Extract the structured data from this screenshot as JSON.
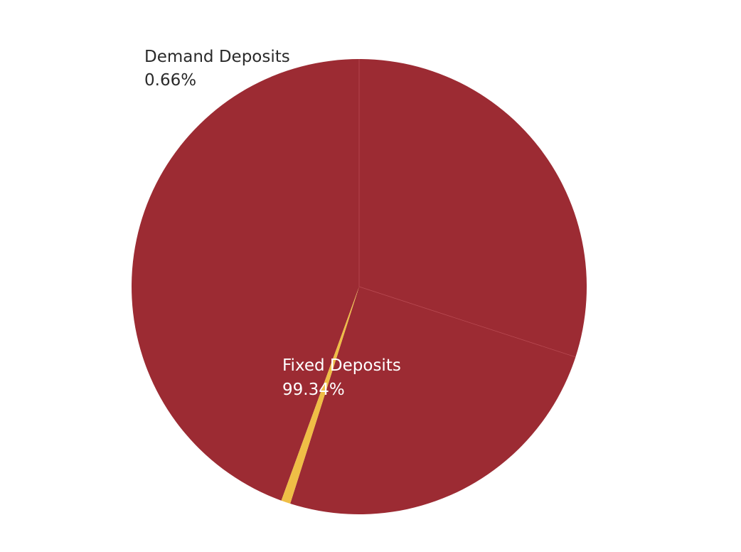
{
  "chart_data": {
    "type": "pie",
    "slices": [
      {
        "label": "Fixed Deposits",
        "value": 99.34,
        "value_label": "99.34%",
        "color": "#9c2b33"
      },
      {
        "label": "Demand Deposits",
        "value": 0.66,
        "value_label": "0.66%",
        "color": "#efbe46"
      }
    ],
    "label_colors": {
      "inside": "#ffffff",
      "outside": "#2a2a2a"
    },
    "separator_color": "#b84a52"
  }
}
